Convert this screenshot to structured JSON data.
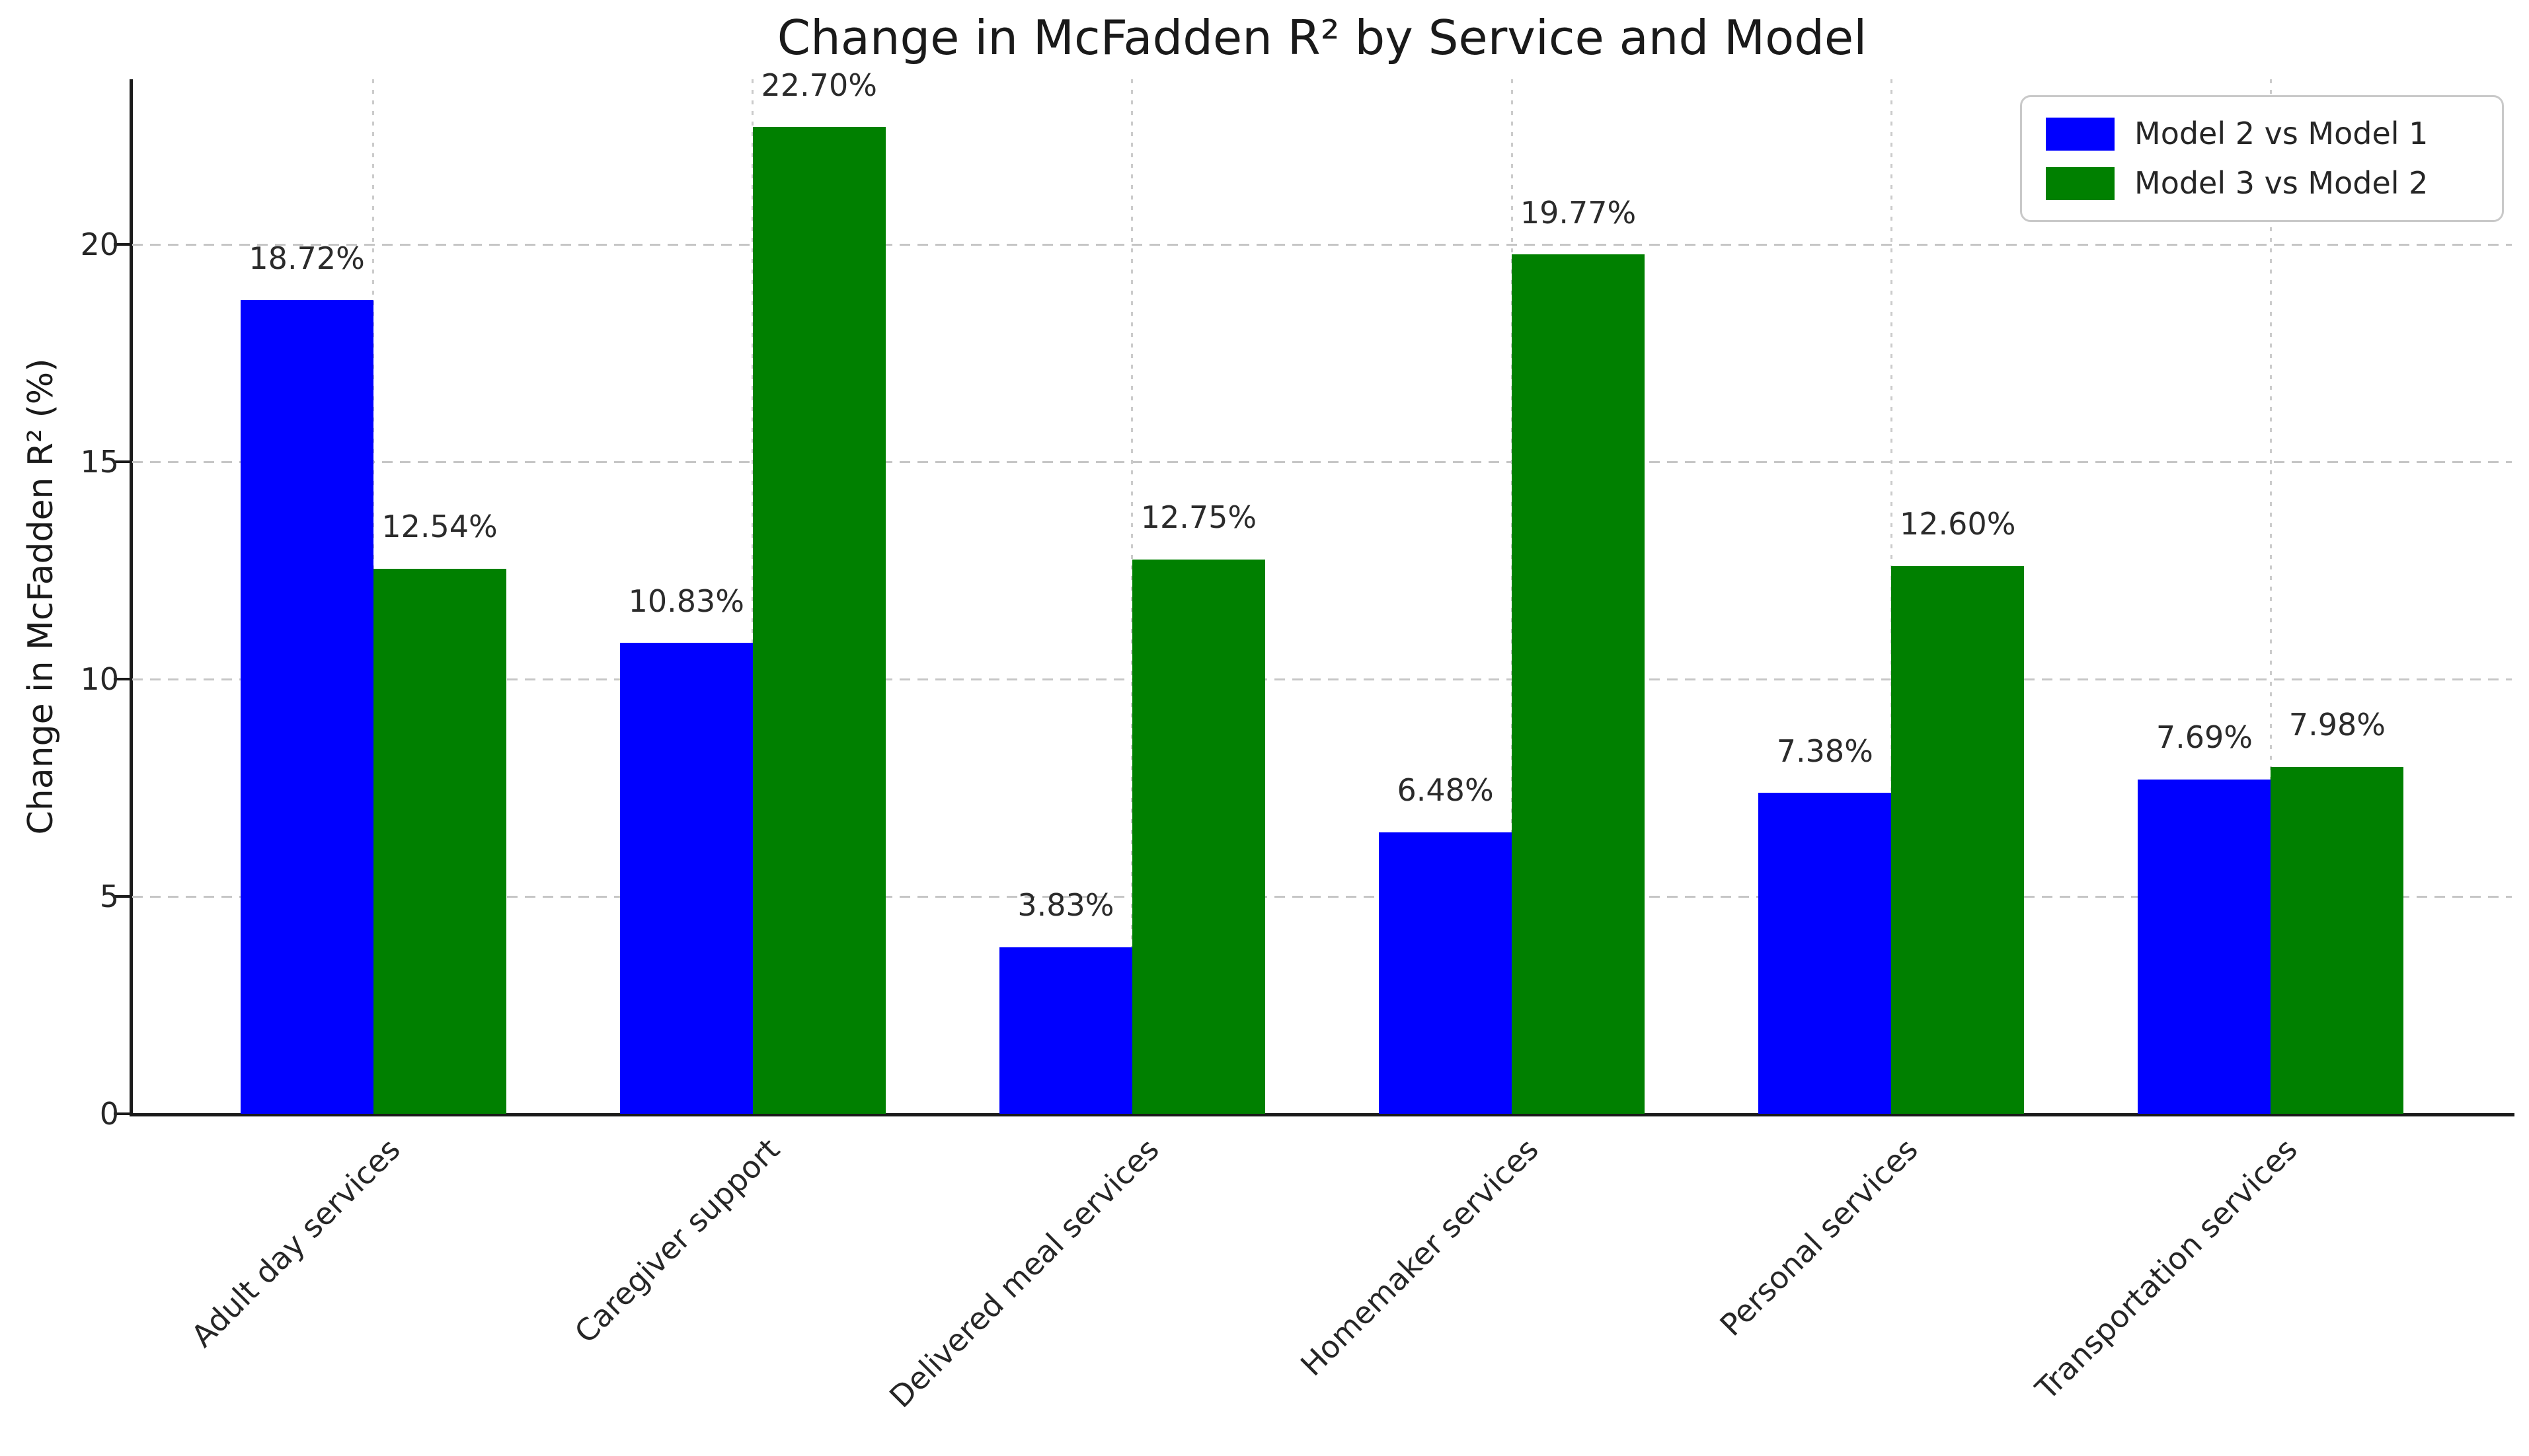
{
  "chart_data": {
    "type": "bar",
    "title": "Change in McFadden R² by Service and Model",
    "xlabel": "",
    "ylabel": "Change in McFadden R² (%)",
    "categories": [
      "Adult day services",
      "Caregiver support",
      "Delivered meal services",
      "Homemaker services",
      "Personal services",
      "Transportation services"
    ],
    "series": [
      {
        "name": "Model 2 vs Model 1",
        "color": "#0000ff",
        "values": [
          18.72,
          10.83,
          3.83,
          6.48,
          7.38,
          7.69
        ],
        "labels": [
          "18.72%",
          "10.83%",
          "3.83%",
          "6.48%",
          "7.38%",
          "7.69%"
        ]
      },
      {
        "name": "Model 3 vs Model 2",
        "color": "#008000",
        "values": [
          12.54,
          22.7,
          12.75,
          19.77,
          12.6,
          7.98
        ],
        "labels": [
          "12.54%",
          "22.70%",
          "12.75%",
          "19.77%",
          "12.60%",
          "7.98%"
        ]
      }
    ],
    "yticks": [
      0,
      5,
      10,
      15,
      20
    ],
    "ylim": [
      0,
      23.8
    ],
    "grid": "dashed",
    "legend_position": "top-right",
    "colors": {
      "grid": "#c8c8c8",
      "spine": "#1a1a1a",
      "text": "#262626"
    }
  }
}
